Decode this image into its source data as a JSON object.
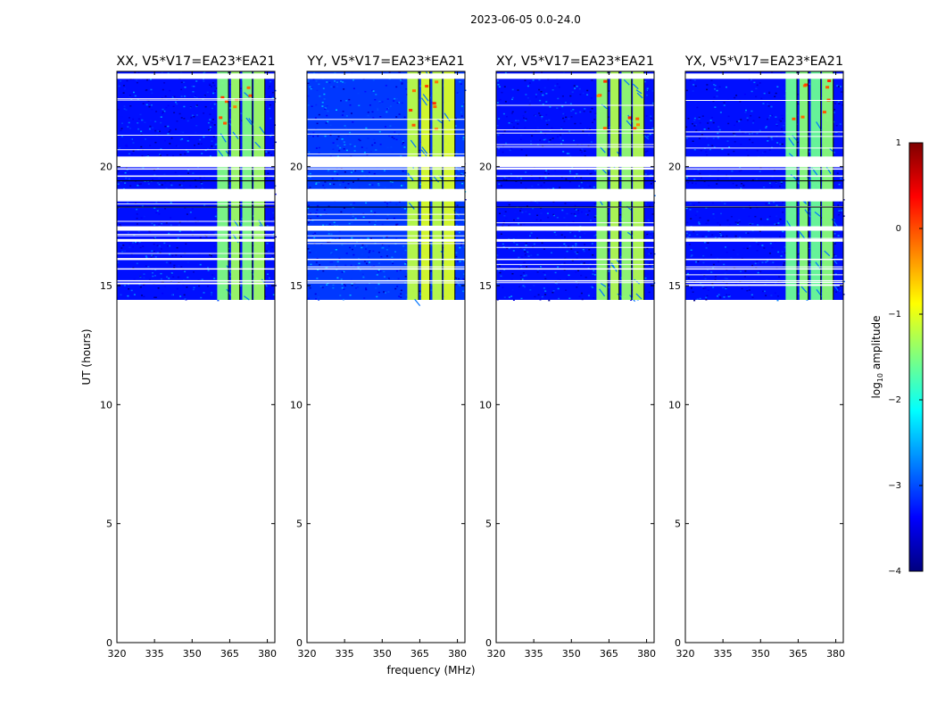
{
  "figure": {
    "suptitle": "2023-06-05 0.0-24.0",
    "xlabel": "frequency (MHz)",
    "ylabel": "UT (hours)"
  },
  "colorbar": {
    "label_prefix": "log",
    "label_sub": "10",
    "label_suffix": " amplitude",
    "range": [
      -4,
      1
    ],
    "ticks": [
      1,
      0,
      -1,
      -2,
      -3,
      -4
    ],
    "tick_labels": [
      "1",
      "0",
      "−1",
      "−2",
      "−3",
      "−4"
    ],
    "colormap": "jet",
    "colors": [
      "#00007f",
      "#0000ff",
      "#007fff",
      "#00ffff",
      "#7fff7f",
      "#ffff00",
      "#ff7f00",
      "#ff0000",
      "#7f0000"
    ]
  },
  "chart_data": [
    {
      "type": "heatmap",
      "title": "XX, V5*V17=EA23*EA21",
      "xlim": [
        320,
        383
      ],
      "ylim": [
        0,
        24
      ],
      "xticks": [
        320,
        335,
        350,
        365,
        380
      ],
      "yticks": [
        0,
        5,
        10,
        15,
        20
      ],
      "data_ut_range": [
        14.4,
        24
      ],
      "background_log_amplitude": -3.3,
      "band_log_amplitude": -1.5,
      "bright_bands_mhz": [
        [
          360,
          364.5
        ],
        [
          365.5,
          369
        ],
        [
          370,
          374
        ],
        [
          374.5,
          379
        ]
      ],
      "flagged_ut_hours": [
        23.8,
        20.2,
        19.9,
        19.6,
        18.8,
        17.4,
        16.9,
        16.1,
        15.7,
        15.2
      ]
    },
    {
      "type": "heatmap",
      "title": "YY, V5*V17=EA23*EA21",
      "xlim": [
        320,
        383
      ],
      "ylim": [
        0,
        24
      ],
      "xticks": [
        320,
        335,
        350,
        365,
        380
      ],
      "yticks": [
        0,
        5,
        10,
        15,
        20
      ],
      "data_ut_range": [
        14.4,
        24
      ],
      "background_log_amplitude": -3.1,
      "band_log_amplitude": -1.2,
      "bright_bands_mhz": [
        [
          360,
          364.5
        ],
        [
          365.5,
          369
        ],
        [
          370,
          374
        ],
        [
          374.5,
          379
        ]
      ],
      "flagged_ut_hours": [
        23.8,
        20.2,
        19.9,
        19.6,
        18.8,
        17.4,
        16.9,
        16.1,
        15.7,
        15.2
      ]
    },
    {
      "type": "heatmap",
      "title": "XY, V5*V17=EA23*EA21",
      "xlim": [
        320,
        383
      ],
      "ylim": [
        0,
        24
      ],
      "xticks": [
        320,
        335,
        350,
        365,
        380
      ],
      "yticks": [
        0,
        5,
        10,
        15,
        20
      ],
      "data_ut_range": [
        14.4,
        24
      ],
      "background_log_amplitude": -3.3,
      "band_log_amplitude": -1.4,
      "bright_bands_mhz": [
        [
          360,
          364.5
        ],
        [
          365.5,
          369
        ],
        [
          370,
          374
        ],
        [
          374.5,
          379
        ]
      ],
      "flagged_ut_hours": [
        23.8,
        20.2,
        19.9,
        19.6,
        18.8,
        17.4,
        16.9,
        16.1,
        15.7,
        15.2
      ]
    },
    {
      "type": "heatmap",
      "title": "YX, V5*V17=EA23*EA21",
      "xlim": [
        320,
        383
      ],
      "ylim": [
        0,
        24
      ],
      "xticks": [
        320,
        335,
        350,
        365,
        380
      ],
      "yticks": [
        0,
        5,
        10,
        15,
        20
      ],
      "data_ut_range": [
        14.4,
        24
      ],
      "background_log_amplitude": -3.3,
      "band_log_amplitude": -1.6,
      "bright_bands_mhz": [
        [
          360,
          364.5
        ],
        [
          365.5,
          369
        ],
        [
          370,
          374
        ],
        [
          374.5,
          379
        ]
      ],
      "flagged_ut_hours": [
        23.8,
        20.2,
        19.9,
        19.6,
        18.8,
        17.4,
        16.9,
        16.1,
        15.7,
        15.2
      ]
    }
  ]
}
